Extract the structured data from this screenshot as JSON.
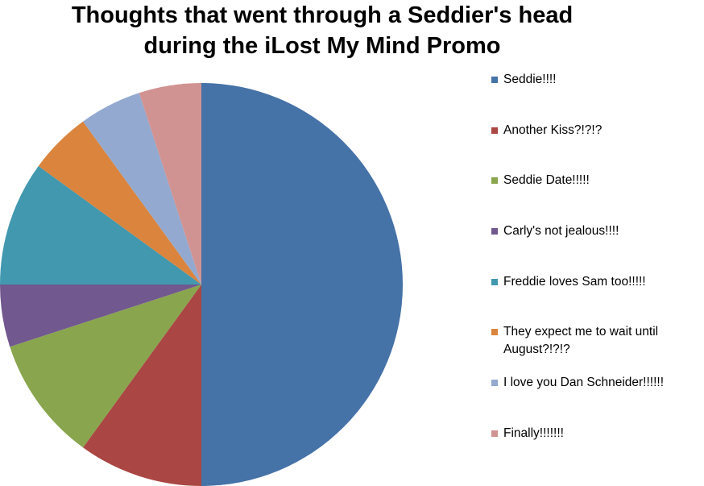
{
  "chart_data": {
    "type": "pie",
    "title": "Thoughts that went through a Seddier's head during the iLost My Mind Promo",
    "categories": [
      "Seddie!!!!",
      "Another Kiss?!?!?",
      "Seddie Date!!!!!",
      "Carly's not jealous!!!!",
      "Freddie loves Sam too!!!!!",
      "They expect me to wait until August?!?!?",
      "I love you Dan Schneider!!!!!!",
      "Finally!!!!!!!"
    ],
    "values": [
      50,
      10,
      10,
      5,
      10,
      5,
      5,
      5
    ],
    "colors": [
      "#4572a7",
      "#aa4643",
      "#89a54e",
      "#71588f",
      "#4198af",
      "#db843d",
      "#93a9cf",
      "#d19392"
    ],
    "legend": "right"
  }
}
